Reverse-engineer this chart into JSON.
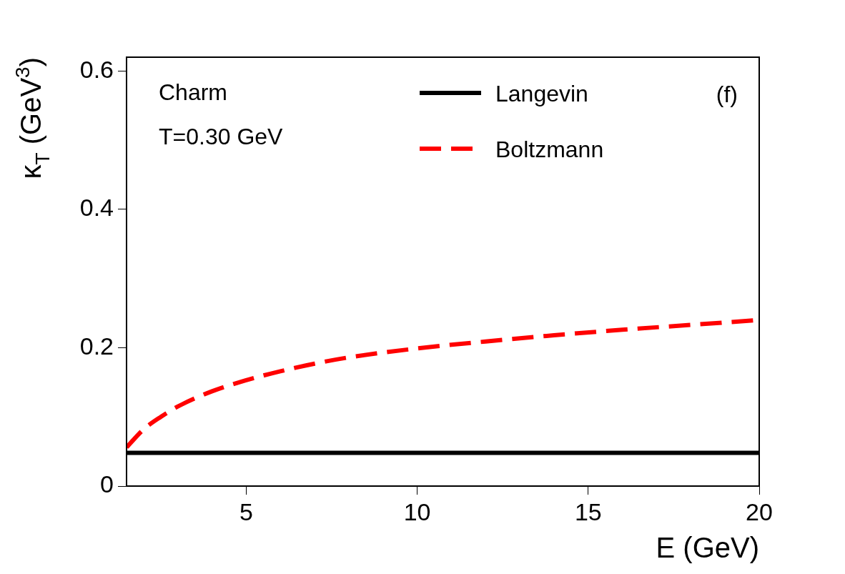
{
  "chart_data": {
    "type": "line",
    "xlabel": "E (GeV)",
    "ylabel": "κ$_{T}$ (GeV$^{3}$)",
    "annotations": [
      "Charm",
      "T=0.30 GeV",
      "(f)"
    ],
    "xlim": [
      1.5,
      20
    ],
    "xticks": [
      5,
      10,
      15,
      20
    ],
    "ylim": [
      0,
      0.62
    ],
    "yticks": [
      0,
      0.2,
      0.4,
      0.6
    ],
    "legend": "top right",
    "series": [
      {
        "name": "Langevin",
        "color": "#000000",
        "line_style": "solid",
        "x": [
          1.5,
          20
        ],
        "values": [
          0.048,
          0.048
        ]
      },
      {
        "name": "Boltzmann",
        "color": "#ff0000",
        "line_style": "dashed",
        "x": [
          1.5,
          2,
          2.5,
          3,
          4,
          5,
          6,
          7,
          8,
          10,
          12,
          14,
          16,
          18,
          20
        ],
        "values": [
          0.056,
          0.082,
          0.1,
          0.115,
          0.137,
          0.153,
          0.166,
          0.177,
          0.186,
          0.199,
          0.209,
          0.218,
          0.226,
          0.233,
          0.24
        ]
      }
    ]
  }
}
